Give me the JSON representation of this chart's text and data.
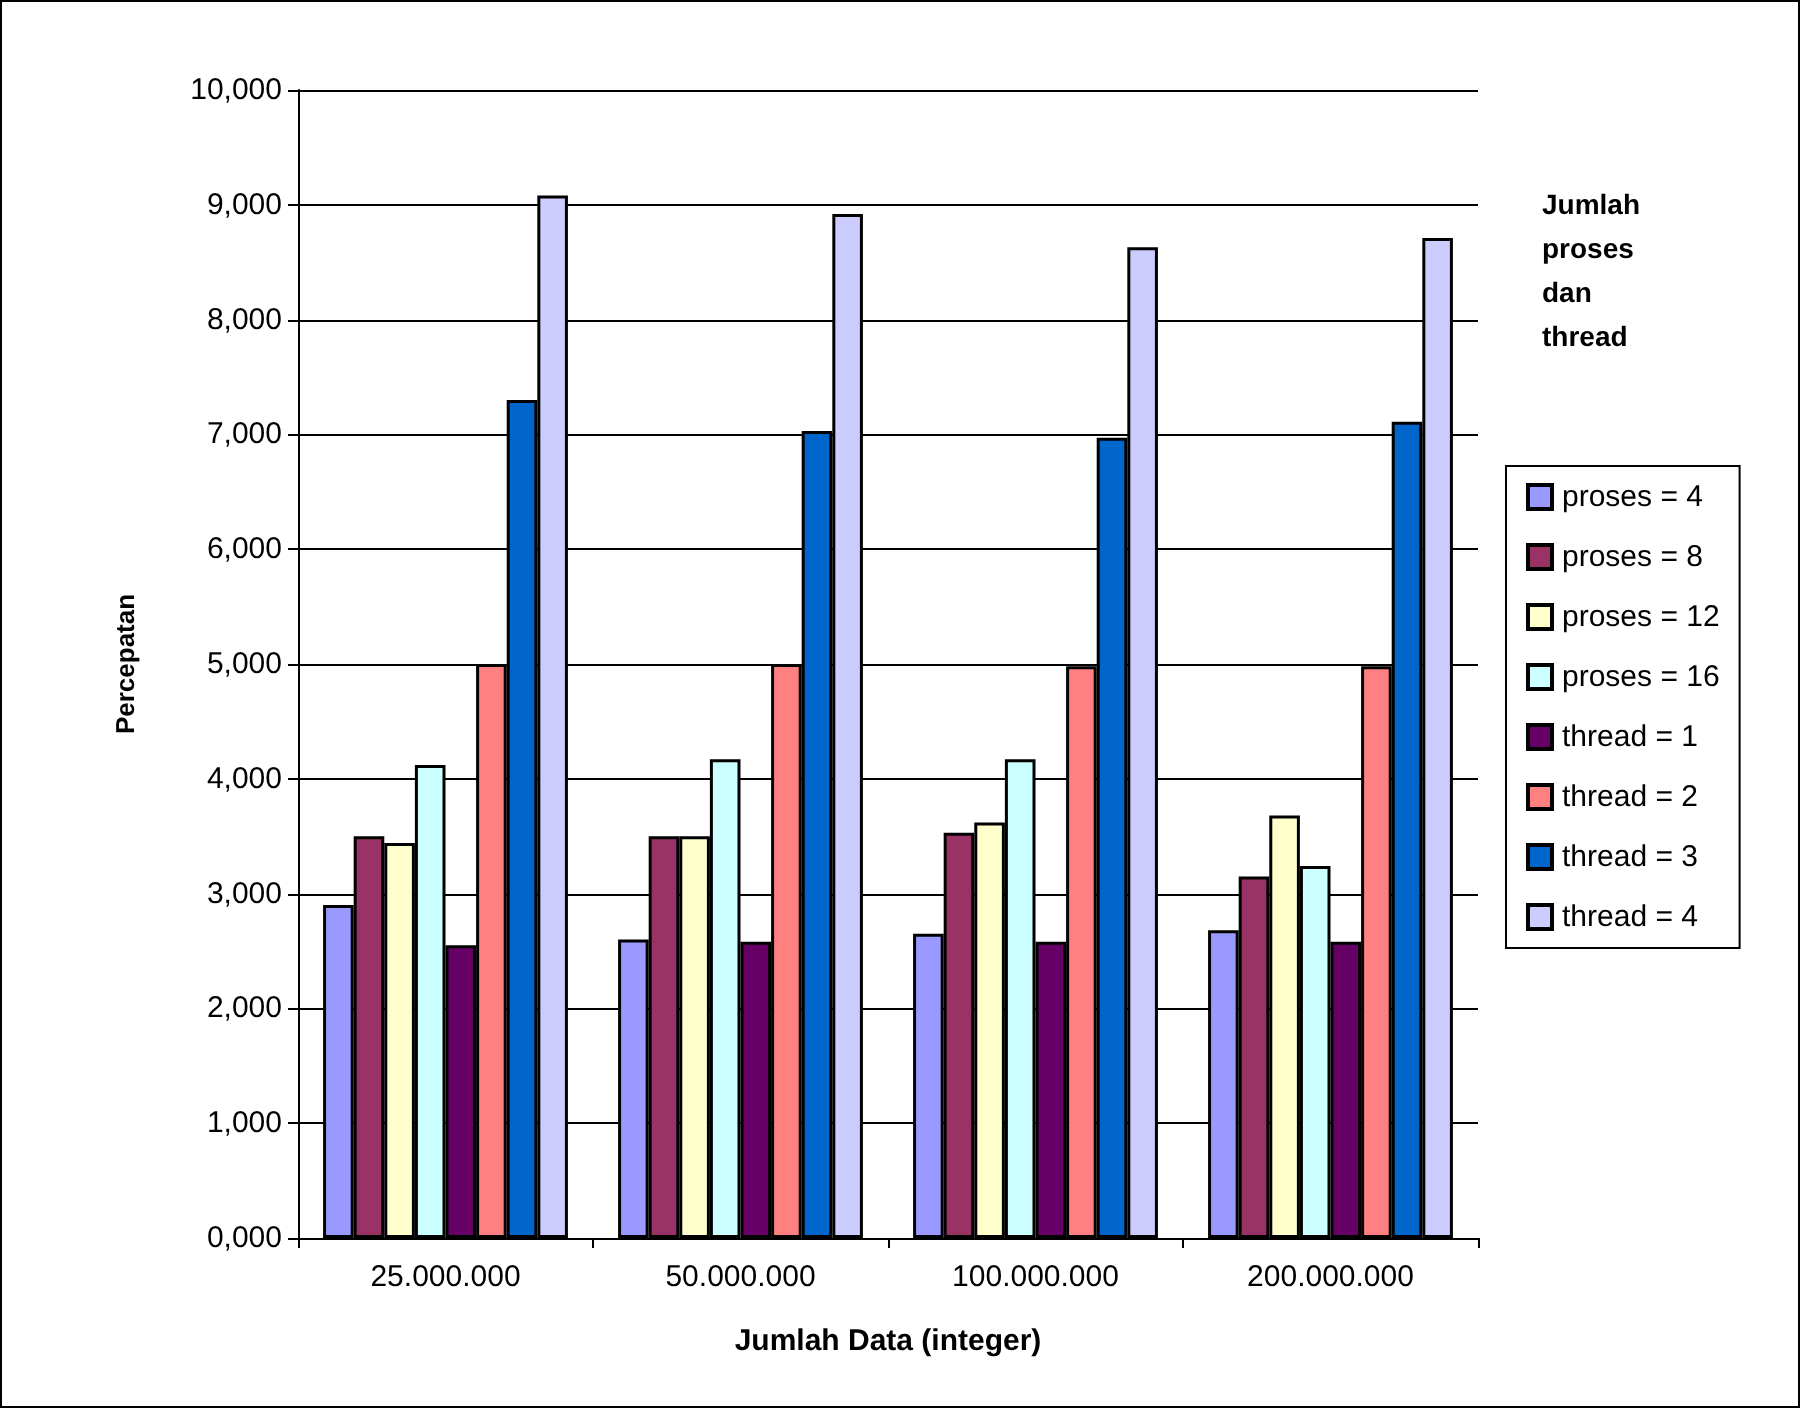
{
  "chart_data": {
    "type": "bar",
    "xlabel": "Jumlah Data (integer)",
    "ylabel": "Percepatan",
    "legend_title": "Jumlah proses dan thread",
    "categories": [
      "25.000.000",
      "50.000.000",
      "100.000.000",
      "200.000.000"
    ],
    "series": [
      {
        "name": "proses = 4",
        "color": "#9999ff",
        "values": [
          2.9,
          2.6,
          2.65,
          2.68
        ]
      },
      {
        "name": "proses = 8",
        "color": "#993366",
        "values": [
          3.5,
          3.5,
          3.53,
          3.15
        ]
      },
      {
        "name": "proses = 12",
        "color": "#ffffcc",
        "values": [
          3.44,
          3.5,
          3.62,
          3.68
        ]
      },
      {
        "name": "proses = 16",
        "color": "#ccffff",
        "values": [
          4.12,
          4.17,
          4.17,
          3.24
        ]
      },
      {
        "name": "thread = 1",
        "color": "#660066",
        "values": [
          2.55,
          2.58,
          2.58,
          2.58
        ]
      },
      {
        "name": "thread = 2",
        "color": "#ff8080",
        "values": [
          5.0,
          5.0,
          4.98,
          4.98
        ]
      },
      {
        "name": "thread = 3",
        "color": "#0066cc",
        "values": [
          7.3,
          7.03,
          6.97,
          7.11
        ]
      },
      {
        "name": "thread = 4",
        "color": "#ccccff",
        "values": [
          9.08,
          8.92,
          8.63,
          8.71
        ]
      }
    ],
    "ylim": [
      0,
      10
    ],
    "yticks": [
      {
        "value": 0,
        "label": "0,000"
      },
      {
        "value": 1,
        "label": "1,000"
      },
      {
        "value": 2,
        "label": "2,000"
      },
      {
        "value": 3,
        "label": "3,000"
      },
      {
        "value": 4,
        "label": "4,000"
      },
      {
        "value": 5,
        "label": "5,000"
      },
      {
        "value": 6,
        "label": "6,000"
      },
      {
        "value": 7,
        "label": "7,000"
      },
      {
        "value": 8,
        "label": "8,000"
      },
      {
        "value": 9,
        "label": "9,000"
      },
      {
        "value": 10,
        "label": "10,000"
      }
    ],
    "grid": "y",
    "legend": "right"
  }
}
